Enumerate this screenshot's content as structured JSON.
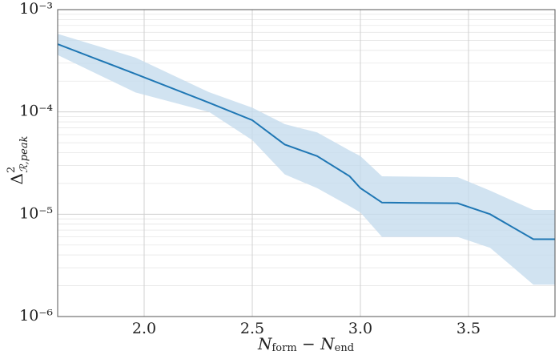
{
  "chart_data": {
    "type": "line",
    "xlabel": [
      "N",
      "form",
      " − ",
      "N",
      "end"
    ],
    "ylabel": [
      "Δ",
      "2",
      "ℛ,peak"
    ],
    "x": [
      1.6,
      1.96,
      2.3,
      2.5,
      2.65,
      2.8,
      2.95,
      3.0,
      3.1,
      3.45,
      3.6,
      3.8,
      3.9
    ],
    "values": [
      0.00046,
      0.000235,
      0.000123,
      8.3e-05,
      4.8e-05,
      3.7e-05,
      2.35e-05,
      1.8e-05,
      1.3e-05,
      1.28e-05,
      1e-05,
      5.7e-06,
      5.7e-06
    ],
    "upper": [
      0.00058,
      0.00034,
      0.000156,
      0.00011,
      7.6e-05,
      6.3e-05,
      4.2e-05,
      3.7e-05,
      2.35e-05,
      2.3e-05,
      1.7e-05,
      1.1e-05,
      1.1e-05
    ],
    "lower": [
      0.00036,
      0.000155,
      0.0001,
      5.3e-05,
      2.45e-05,
      1.8e-05,
      1.2e-05,
      1.04e-05,
      6e-06,
      6e-06,
      4.7e-06,
      2.05e-06,
      2.05e-06
    ],
    "color": "#1f77b4",
    "band_color": "#c6dcee",
    "xlim": [
      1.6,
      3.9
    ],
    "xticks": [
      {
        "value": 2.0,
        "label": "2.0"
      },
      2.5,
      {
        "value": 3.0,
        "label": "3.0"
      },
      3.5
    ],
    "ylim": [
      1e-06,
      0.001
    ],
    "yticks": [
      {
        "value": 1e-06,
        "label": "10⁻⁶"
      },
      {
        "value": 1e-05,
        "label": "10⁻⁵"
      },
      {
        "value": 0.0001,
        "label": "10⁻⁴"
      },
      {
        "value": 0.001,
        "label": "10⁻³"
      }
    ],
    "yminorticks": [
      2e-06,
      3e-06,
      4e-06,
      5e-06,
      6e-06,
      7e-06,
      8e-06,
      9e-06,
      2e-05,
      3e-05,
      4e-05,
      5e-05,
      6e-05,
      7e-05,
      8e-05,
      9e-05,
      0.0002,
      0.0003,
      0.0004,
      0.0005,
      0.0006,
      0.0007,
      0.0008,
      0.0009
    ],
    "log_y": true,
    "grid": true
  }
}
